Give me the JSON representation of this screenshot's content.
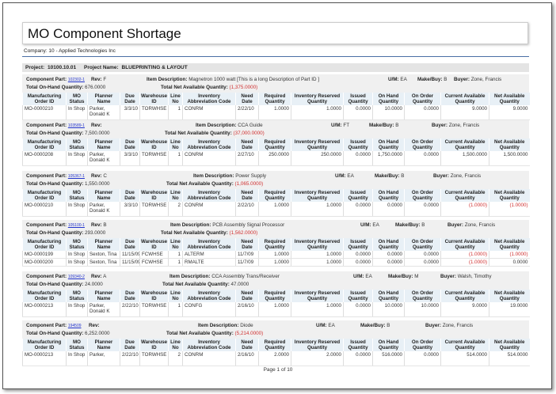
{
  "title": "MO Component Shortage",
  "company": "Company: 10 - Applied Technologies Inc",
  "project": {
    "label": "Project:",
    "number": "10100.10.01",
    "name_label": "Project Name:",
    "name": "BLUEPRINTING & LAYOUT"
  },
  "labels": {
    "component_part": "Component Part:",
    "rev": "Rev:",
    "item_description": "Item Description:",
    "um": "U/M:",
    "make_buy": "Make/Buy:",
    "buyer": "Buyer:",
    "total_on_hand": "Total On-Hand Quantity:",
    "total_net": "Total Net Available Quantity:"
  },
  "columns": [
    "Manufacturing Order ID",
    "MO Status",
    "Planner Name",
    "Due Date",
    "Warehouse ID",
    "Line No",
    "Inventory Abbreviation Code",
    "Need Date",
    "Required Quantity",
    "Inventory Reserved Quantity",
    "Issued Quantity",
    "On Hand Quantity",
    "On Order Quantity",
    "Current Available Quantity",
    "Net Available Quantity"
  ],
  "groups": [
    {
      "part": "102302-1",
      "rev": "F",
      "description": "Magnetron 1000 watt [This is a long Description of Part ID ]",
      "um": "EA",
      "make_buy": "B",
      "buyer": "Zone, Francis",
      "total_on_hand": "676.0000",
      "total_net": "(1,375.0000)",
      "total_net_negative": true,
      "rows": [
        [
          "MO-0000210",
          "In Shop",
          "Parker, Donald K",
          "3/3/10",
          "TORWHSE",
          "1",
          "CONRM",
          "2/22/10",
          "1.0000",
          "1.0000",
          "0.0000",
          "10.0000",
          "0.0000",
          "9.0000",
          "9.0000"
        ]
      ]
    },
    {
      "part": "103589-1",
      "rev": "",
      "description": "CCA Guide",
      "um": "FT",
      "make_buy": "B",
      "buyer": "Zone, Francis",
      "total_on_hand": "7,500.0000",
      "total_net": "(37,000.0000)",
      "total_net_negative": true,
      "rows": [
        [
          "MO-0000208",
          "In Shop",
          "Parker, Donald K",
          "3/3/10",
          "TORWHSE",
          "1",
          "CONRM",
          "2/27/10",
          "250.0000",
          "250.0000",
          "0.0000",
          "1,750.0000",
          "0.0000",
          "1,500.0000",
          "1,500.0000"
        ]
      ]
    },
    {
      "part": "105367-1",
      "rev": "C",
      "description": "Power Supply",
      "um": "EA",
      "make_buy": "B",
      "buyer": "Zone, Francis",
      "total_on_hand": "1,550.0000",
      "total_net": "(1,065.0000)",
      "total_net_negative": true,
      "rows": [
        [
          "MO-0000210",
          "In Shop",
          "Parker, Donald K",
          "3/3/10",
          "TORWHSE",
          "2",
          "CONRM",
          "2/22/10",
          "1.0000",
          "1.0000",
          "0.0000",
          "0.0000",
          "0.0000",
          "(1.0000)",
          "(1.0000)"
        ]
      ]
    },
    {
      "part": "105100-1",
      "rev": "B",
      "description": "PCB Assembly Signal Processor",
      "um": "EA",
      "make_buy": "B",
      "buyer": "Zone, Francis",
      "total_on_hand": "293.0000",
      "total_net": "(1,562.0000)",
      "total_net_negative": true,
      "rows": [
        [
          "MO-0000199",
          "In Shop",
          "Sexton, Tina",
          "11/15/09",
          "FCWHSE",
          "1",
          "ALTERM",
          "11/7/09",
          "1.0000",
          "1.0000",
          "0.0000",
          "0.0000",
          "0.0000",
          "(1.0000)",
          "(1.0000)"
        ],
        [
          "MO-0000200",
          "In Shop",
          "Sexton, Tina",
          "11/15/09",
          "FCWHSE",
          "1",
          "RMALTE",
          "11/7/09",
          "1.0000",
          "1.0000",
          "0.0000",
          "0.0000",
          "0.0000",
          "(1.0000)",
          "0.0000"
        ]
      ]
    },
    {
      "part": "109340-2",
      "rev": "A",
      "description": "CCA Assembly Trans/Receiver",
      "um": "EA",
      "make_buy": "M",
      "buyer": "Walsh, Timothy",
      "total_on_hand": "24.0000",
      "total_net": "47.0000",
      "total_net_negative": false,
      "rows": [
        [
          "MO-0000213",
          "In Shop",
          "Parker, Donald K",
          "2/22/10",
          "TORWHSE",
          "1",
          "CONFG",
          "2/16/10",
          "1.0000",
          "1.0000",
          "0.0000",
          "10.0000",
          "10.0000",
          "9.0000",
          "19.0000"
        ]
      ]
    },
    {
      "part": "194509",
      "rev": "",
      "description": "Diode",
      "um": "EA",
      "make_buy": "B",
      "buyer": "Zone, Francis",
      "total_on_hand": "6,252.0000",
      "total_net": "(5,214.0000)",
      "total_net_negative": true,
      "rows": [
        [
          "MO-0000213",
          "In Shop",
          "Parker,",
          "2/22/10",
          "TORWHSE",
          "2",
          "CONRM",
          "2/16/10",
          "2.0000",
          "2.0000",
          "0.0000",
          "516.0000",
          "0.0000",
          "514.0000",
          "514.0000"
        ]
      ]
    }
  ],
  "footer": "Page 1 of 10",
  "colors": {
    "negative": "#d03030",
    "link": "#2233cc",
    "header_bg": "#e8f0f6",
    "group_bg": "#f0f0f0"
  }
}
